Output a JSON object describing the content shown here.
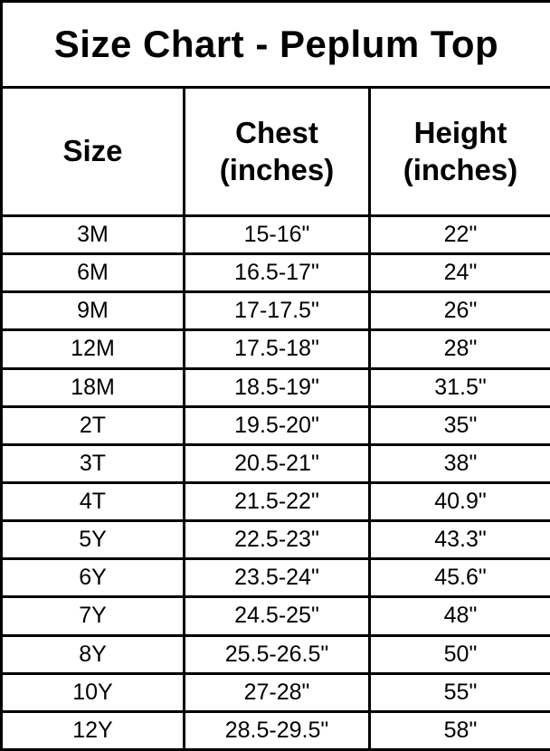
{
  "title": "Size Chart - Peplum Top",
  "headers": {
    "size": "Size",
    "chest": "Chest\n(inches)",
    "height": "Height\n(inches)"
  },
  "chart_data": {
    "type": "table",
    "title": "Size Chart - Peplum Top",
    "columns": [
      "Size",
      "Chest (inches)",
      "Height (inches)"
    ],
    "rows": [
      [
        "3M",
        "15-16\"",
        "22\""
      ],
      [
        "6M",
        "16.5-17\"",
        "24\""
      ],
      [
        "9M",
        "17-17.5\"",
        "26\""
      ],
      [
        "12M",
        "17.5-18\"",
        "28\""
      ],
      [
        "18M",
        "18.5-19\"",
        "31.5\""
      ],
      [
        "2T",
        "19.5-20\"",
        "35\""
      ],
      [
        "3T",
        "20.5-21\"",
        "38\""
      ],
      [
        "4T",
        "21.5-22\"",
        "40.9\""
      ],
      [
        "5Y",
        "22.5-23\"",
        "43.3\""
      ],
      [
        "6Y",
        "23.5-24\"",
        "45.6\""
      ],
      [
        "7Y",
        "24.5-25\"",
        "48\""
      ],
      [
        "8Y",
        "25.5-26.5\"",
        "50\""
      ],
      [
        "10Y",
        "27-28\"",
        "55\""
      ],
      [
        "12Y",
        "28.5-29.5\"",
        "58\""
      ]
    ]
  },
  "colors": {
    "border": "#000000",
    "background": "#ffffff",
    "text": "#000000"
  }
}
